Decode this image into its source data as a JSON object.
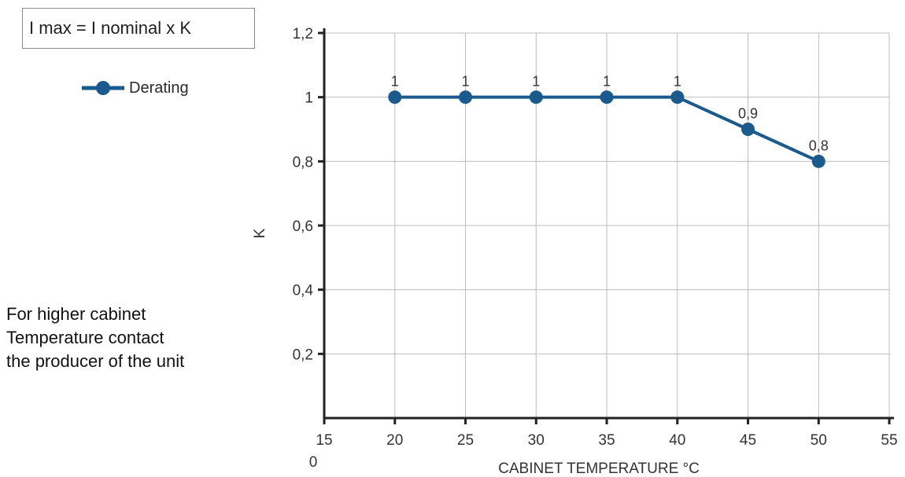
{
  "formula": "I max = I nominal x K",
  "note": {
    "lines": [
      "For higher cabinet",
      "Temperature contact",
      "the producer of the unit"
    ]
  },
  "colors": {
    "series": "#1a5a8c",
    "grid": "#bdbdbd",
    "axis": "#222222"
  },
  "chart_data": {
    "type": "line",
    "title": "",
    "xlabel": "CABINET TEMPERATURE °C",
    "ylabel": "K",
    "xlim": [
      15,
      55
    ],
    "ylim": [
      0,
      1.2
    ],
    "x_ticks": [
      "15",
      "20",
      "25",
      "30",
      "35",
      "40",
      "45",
      "50",
      "55"
    ],
    "y_ticks": [
      "0,2",
      "0,4",
      "0,6",
      "0,8",
      "1",
      "1,2"
    ],
    "origin_label": "0",
    "grid": true,
    "legend_position": "top-left",
    "series": [
      {
        "name": "Derating",
        "x": [
          20,
          25,
          30,
          35,
          40,
          45,
          50
        ],
        "y": [
          1,
          1,
          1,
          1,
          1,
          0.9,
          0.8
        ],
        "labels": [
          "1",
          "1",
          "1",
          "1",
          "1",
          "0,9",
          "0,8"
        ]
      }
    ]
  }
}
